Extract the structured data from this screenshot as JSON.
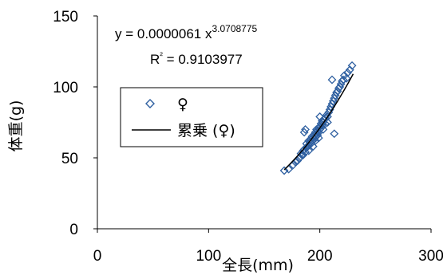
{
  "chart_data": {
    "type": "scatter",
    "xlabel": "全長(mm)",
    "ylabel": "体重(g)",
    "xlim": [
      0,
      300
    ],
    "ylim": [
      0,
      150
    ],
    "x_ticks": [
      "0",
      "100",
      "200",
      "300"
    ],
    "y_ticks": [
      "0",
      "50",
      "100",
      "150"
    ],
    "grid": false,
    "legend_position": "left-center",
    "annotations": {
      "equation_prefix": "y = 0.0000061 x",
      "equation_exponent": "3.0708775",
      "r2_prefix": "R",
      "r2_sup": "²",
      "r2_value": " = 0.9103977"
    },
    "series": [
      {
        "name": "♀",
        "kind": "scatter",
        "marker": "diamond-open",
        "color": "#2e5fa0",
        "points": [
          [
            168,
            41
          ],
          [
            172,
            42
          ],
          [
            176,
            45
          ],
          [
            178,
            47
          ],
          [
            180,
            48
          ],
          [
            182,
            50
          ],
          [
            183,
            53
          ],
          [
            184,
            52
          ],
          [
            185,
            55
          ],
          [
            186,
            56
          ],
          [
            187,
            54
          ],
          [
            188,
            57
          ],
          [
            188,
            60
          ],
          [
            189,
            58
          ],
          [
            190,
            62
          ],
          [
            190,
            59
          ],
          [
            191,
            61
          ],
          [
            192,
            63
          ],
          [
            192,
            60
          ],
          [
            193,
            65
          ],
          [
            193,
            62
          ],
          [
            194,
            64
          ],
          [
            195,
            66
          ],
          [
            195,
            63
          ],
          [
            196,
            68
          ],
          [
            196,
            65
          ],
          [
            197,
            67
          ],
          [
            197,
            70
          ],
          [
            198,
            66
          ],
          [
            198,
            69
          ],
          [
            199,
            71
          ],
          [
            199,
            68
          ],
          [
            200,
            72
          ],
          [
            200,
            70
          ],
          [
            201,
            74
          ],
          [
            201,
            71
          ],
          [
            202,
            73
          ],
          [
            202,
            76
          ],
          [
            203,
            75
          ],
          [
            204,
            77
          ],
          [
            205,
            78
          ],
          [
            205,
            74
          ],
          [
            206,
            80
          ],
          [
            207,
            79
          ],
          [
            208,
            82
          ],
          [
            209,
            84
          ],
          [
            210,
            86
          ],
          [
            211,
            88
          ],
          [
            212,
            90
          ],
          [
            213,
            92
          ],
          [
            214,
            94
          ],
          [
            215,
            96
          ],
          [
            216,
            97
          ],
          [
            217,
            99
          ],
          [
            218,
            100
          ],
          [
            219,
            102
          ],
          [
            220,
            104
          ],
          [
            221,
            105
          ],
          [
            222,
            108
          ],
          [
            224,
            106
          ],
          [
            225,
            110
          ],
          [
            227,
            112
          ],
          [
            229,
            115
          ],
          [
            211,
            105
          ],
          [
            213,
            67
          ],
          [
            186,
            68
          ],
          [
            187,
            70
          ],
          [
            190,
            55
          ],
          [
            185,
            52
          ],
          [
            194,
            58
          ],
          [
            196,
            62
          ],
          [
            199,
            64
          ],
          [
            200,
            79
          ],
          [
            203,
            70
          ],
          [
            207,
            75
          ]
        ]
      },
      {
        "name": "累乗 (♀)",
        "kind": "power-trendline",
        "color": "#000000",
        "coefficient": 6.1e-06,
        "exponent": 3.0708775,
        "x_range": [
          168,
          230
        ]
      }
    ]
  }
}
